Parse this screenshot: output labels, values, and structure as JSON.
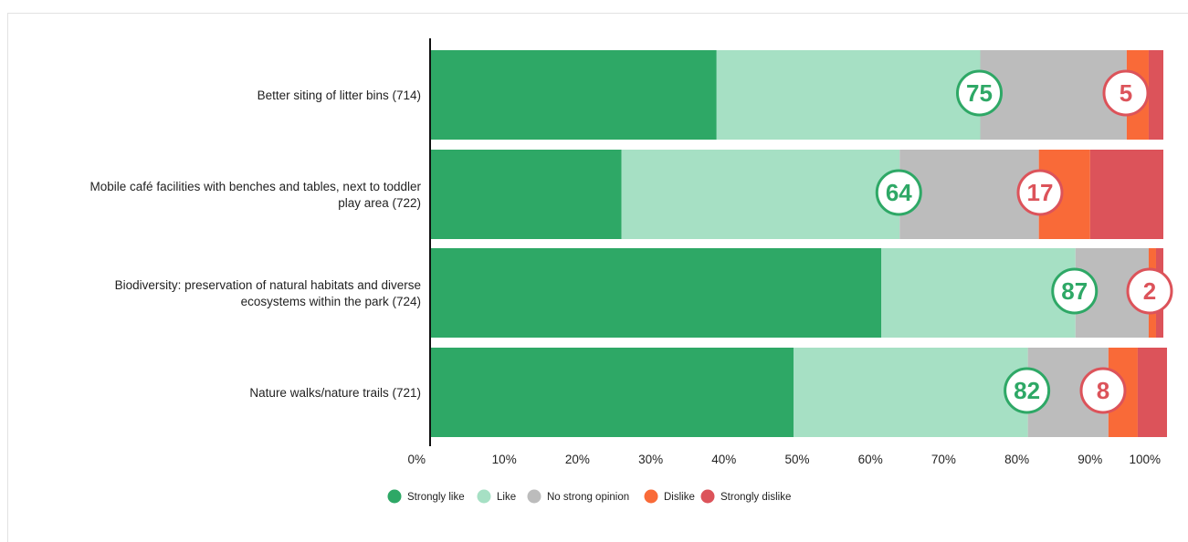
{
  "chart_data": {
    "type": "bar",
    "orientation": "horizontal",
    "stacked": true,
    "categories": [
      "Better siting of litter bins (714)",
      "Mobile café facilities with benches and tables, next to toddler play area (722)",
      "Biodiversity: preservation of natural habitats and diverse ecosystems within the park (724)",
      "Nature walks/nature trails (721)"
    ],
    "category_lines": [
      [
        "Better siting of litter bins (714)"
      ],
      [
        "Mobile café facilities with benches and tables, next to toddler",
        "play area (722)"
      ],
      [
        "Biodiversity: preservation of natural habitats and diverse",
        "ecosystems within the park (724)"
      ],
      [
        "Nature walks/nature trails (721)"
      ]
    ],
    "series": [
      {
        "name": "Strongly like",
        "color": "#2ea866",
        "values": [
          39,
          26,
          61.5,
          49.5
        ]
      },
      {
        "name": "Like",
        "color": "#a6e0c4",
        "values": [
          36,
          38,
          26.5,
          32
        ]
      },
      {
        "name": "No strong opinion",
        "color": "#bcbcbc",
        "values": [
          20,
          19,
          10,
          11
        ]
      },
      {
        "name": "Dislike",
        "color": "#f96a38",
        "values": [
          3,
          7,
          1,
          4
        ]
      },
      {
        "name": "Strongly dislike",
        "color": "#dc535a",
        "values": [
          2,
          10,
          1,
          4
        ]
      }
    ],
    "positive_badges": [
      75,
      64,
      87,
      82
    ],
    "negative_badges": [
      5,
      17,
      2,
      8
    ],
    "badge_colors": {
      "positive": "#2ea866",
      "negative": "#dc535a"
    },
    "x_ticks": [
      "0%",
      "10%",
      "20%",
      "30%",
      "40%",
      "50%",
      "60%",
      "70%",
      "80%",
      "90%",
      "100%"
    ],
    "xlim": [
      0,
      100
    ],
    "xlabel": "",
    "ylabel": "",
    "title": "",
    "legend_position": "bottom-center",
    "grid": false
  }
}
